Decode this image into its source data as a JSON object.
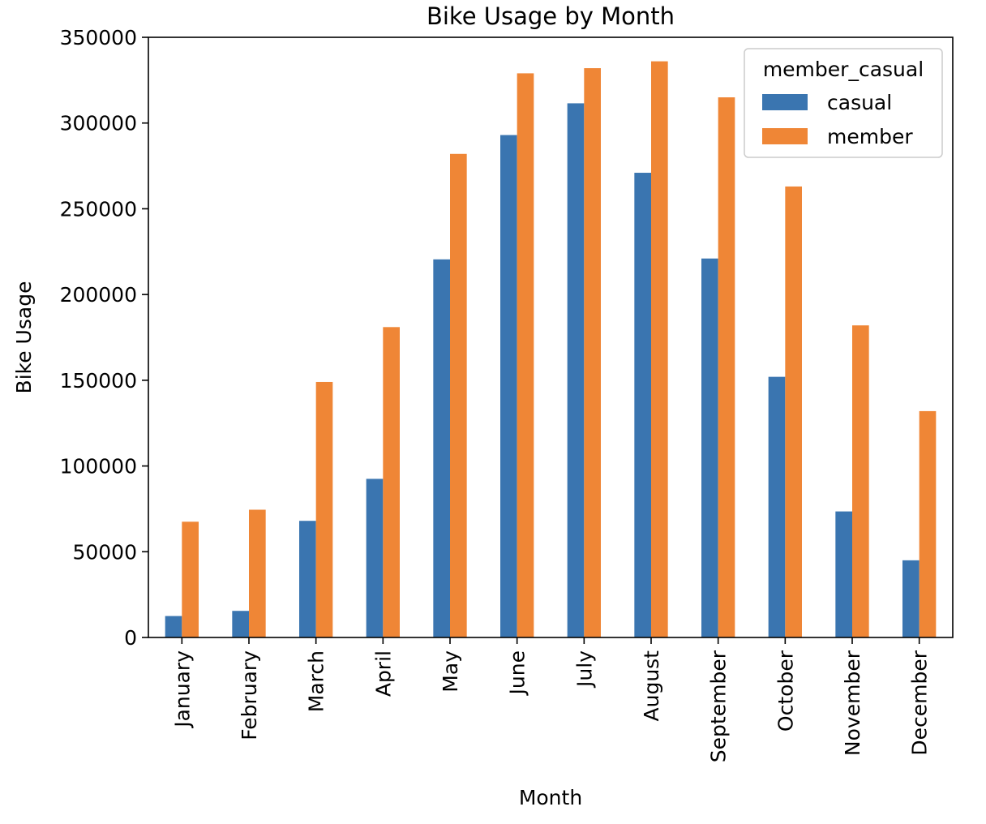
{
  "chart_data": {
    "type": "bar",
    "title": "Bike Usage by Month",
    "xlabel": "Month",
    "ylabel": "Bike Usage",
    "ylim": [
      0,
      350000
    ],
    "yticks": [
      0,
      50000,
      100000,
      150000,
      200000,
      250000,
      300000,
      350000
    ],
    "categories": [
      "January",
      "February",
      "March",
      "April",
      "May",
      "June",
      "July",
      "August",
      "September",
      "October",
      "November",
      "December"
    ],
    "series": [
      {
        "name": "casual",
        "color": "#3a75b0",
        "values": [
          12500,
          15500,
          68000,
          92500,
          220500,
          293000,
          311500,
          271000,
          221000,
          152000,
          73500,
          45000
        ]
      },
      {
        "name": "member",
        "color": "#ef8636",
        "values": [
          67500,
          74500,
          149000,
          181000,
          282000,
          329000,
          332000,
          336000,
          315000,
          263000,
          182000,
          132000
        ]
      }
    ],
    "legend": {
      "title": "member_casual",
      "placement": "top-right"
    },
    "grid": false
  }
}
